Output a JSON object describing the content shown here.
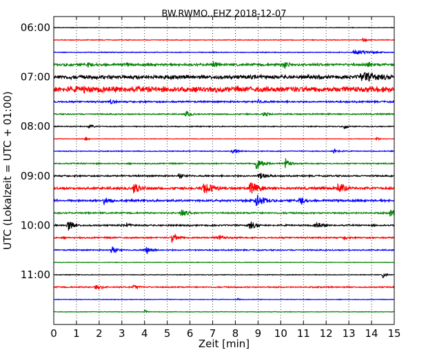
{
  "chart_data": {
    "type": "line",
    "title": "BW.RWMO..EHZ 2018-12-07",
    "xlabel": "Zeit  [min]",
    "ylabel": "UTC (Lokalzeit = UTC + 01:00)",
    "xlim": [
      0,
      15
    ],
    "x_ticks": [
      "0",
      "1",
      "2",
      "3",
      "4",
      "5",
      "6",
      "7",
      "8",
      "9",
      "10",
      "11",
      "12",
      "13",
      "14",
      "15"
    ],
    "y_tick_labels": [
      {
        "row": 0,
        "label": "06:00"
      },
      {
        "row": 4,
        "label": "07:00"
      },
      {
        "row": 8,
        "label": "08:00"
      },
      {
        "row": 12,
        "label": "09:00"
      },
      {
        "row": 16,
        "label": "10:00"
      },
      {
        "row": 20,
        "label": "11:00"
      }
    ],
    "grid": "vertical dotted at each minute",
    "row_colors": [
      "#000000",
      "#ff0000",
      "#0000ff",
      "#008000"
    ],
    "traces": [
      {
        "start": "06:00",
        "noise": 0.6,
        "events": []
      },
      {
        "start": "06:15",
        "noise": 0.8,
        "events": [
          {
            "t": 13.6,
            "amp": 3,
            "dur": 0.3
          }
        ]
      },
      {
        "start": "06:30",
        "noise": 0.8,
        "events": [
          {
            "t": 13.2,
            "amp": 6,
            "dur": 0.7
          },
          {
            "t": 7.0,
            "amp": 2,
            "dur": 0.2
          }
        ]
      },
      {
        "start": "06:45",
        "noise": 2.5,
        "events": [
          {
            "t": 1.5,
            "amp": 7,
            "dur": 0.2
          },
          {
            "t": 3.2,
            "amp": 6,
            "dur": 0.2
          },
          {
            "t": 7.0,
            "amp": 8,
            "dur": 0.3
          },
          {
            "t": 10.1,
            "amp": 9,
            "dur": 0.3
          },
          {
            "t": 13.8,
            "amp": 7,
            "dur": 0.3
          }
        ]
      },
      {
        "start": "07:00",
        "noise": 4.0,
        "events": [
          {
            "t": 13.5,
            "amp": 10,
            "dur": 1.5
          }
        ]
      },
      {
        "start": "07:15",
        "noise": 6.0,
        "events": [
          {
            "t": 1.3,
            "amp": 9,
            "dur": 0.6
          },
          {
            "t": 12.5,
            "amp": 4,
            "dur": 0.3
          }
        ]
      },
      {
        "start": "07:30",
        "noise": 1.8,
        "events": [
          {
            "t": 2.5,
            "amp": 5,
            "dur": 0.3
          },
          {
            "t": 9.0,
            "amp": 5,
            "dur": 0.3
          }
        ]
      },
      {
        "start": "07:45",
        "noise": 1.3,
        "events": [
          {
            "t": 5.8,
            "amp": 6,
            "dur": 0.3
          },
          {
            "t": 9.2,
            "amp": 5,
            "dur": 0.3
          }
        ]
      },
      {
        "start": "08:00",
        "noise": 1.0,
        "events": [
          {
            "t": 1.5,
            "amp": 4,
            "dur": 0.3
          },
          {
            "t": 12.8,
            "amp": 5,
            "dur": 0.2
          }
        ]
      },
      {
        "start": "08:15",
        "noise": 0.6,
        "events": [
          {
            "t": 1.4,
            "amp": 8,
            "dur": 0.08
          },
          {
            "t": 14.2,
            "amp": 3,
            "dur": 0.2
          }
        ]
      },
      {
        "start": "08:30",
        "noise": 0.9,
        "events": [
          {
            "t": 7.8,
            "amp": 5,
            "dur": 0.3
          },
          {
            "t": 12.3,
            "amp": 6,
            "dur": 0.3
          }
        ]
      },
      {
        "start": "08:45",
        "noise": 1.3,
        "events": [
          {
            "t": 8.9,
            "amp": 14,
            "dur": 0.3
          },
          {
            "t": 10.2,
            "amp": 12,
            "dur": 0.2
          }
        ]
      },
      {
        "start": "09:00",
        "noise": 1.6,
        "events": [
          {
            "t": 5.5,
            "amp": 6,
            "dur": 0.3
          },
          {
            "t": 9.0,
            "amp": 8,
            "dur": 0.4
          }
        ]
      },
      {
        "start": "09:15",
        "noise": 2.5,
        "events": [
          {
            "t": 3.5,
            "amp": 12,
            "dur": 0.4
          },
          {
            "t": 6.6,
            "amp": 14,
            "dur": 0.5
          },
          {
            "t": 8.6,
            "amp": 14,
            "dur": 0.5
          },
          {
            "t": 12.5,
            "amp": 12,
            "dur": 0.4
          }
        ]
      },
      {
        "start": "09:30",
        "noise": 2.2,
        "events": [
          {
            "t": 2.2,
            "amp": 8,
            "dur": 0.4
          },
          {
            "t": 8.9,
            "amp": 14,
            "dur": 0.4
          },
          {
            "t": 10.8,
            "amp": 10,
            "dur": 0.3
          }
        ]
      },
      {
        "start": "09:45",
        "noise": 1.6,
        "events": [
          {
            "t": 5.6,
            "amp": 9,
            "dur": 0.3
          },
          {
            "t": 14.8,
            "amp": 8,
            "dur": 0.4
          }
        ]
      },
      {
        "start": "10:00",
        "noise": 1.6,
        "events": [
          {
            "t": 0.6,
            "amp": 12,
            "dur": 0.3
          },
          {
            "t": 3.2,
            "amp": 7,
            "dur": 0.2
          },
          {
            "t": 8.6,
            "amp": 10,
            "dur": 0.3
          },
          {
            "t": 11.5,
            "amp": 10,
            "dur": 0.3
          }
        ]
      },
      {
        "start": "10:15",
        "noise": 1.6,
        "events": [
          {
            "t": 5.2,
            "amp": 10,
            "dur": 0.3
          },
          {
            "t": 7.2,
            "amp": 8,
            "dur": 0.3
          },
          {
            "t": 12.8,
            "amp": 5,
            "dur": 0.2
          }
        ]
      },
      {
        "start": "10:30",
        "noise": 1.3,
        "events": [
          {
            "t": 2.5,
            "amp": 9,
            "dur": 0.3
          },
          {
            "t": 4.0,
            "amp": 10,
            "dur": 0.3
          }
        ]
      },
      {
        "start": "10:45",
        "noise": 0.6,
        "events": []
      },
      {
        "start": "11:00",
        "noise": 0.7,
        "events": [
          {
            "t": 14.5,
            "amp": 6,
            "dur": 0.15
          }
        ]
      },
      {
        "start": "11:15",
        "noise": 1.3,
        "events": [
          {
            "t": 1.8,
            "amp": 8,
            "dur": 0.3
          },
          {
            "t": 3.5,
            "amp": 5,
            "dur": 0.3
          }
        ]
      },
      {
        "start": "11:30",
        "noise": 0.6,
        "events": [
          {
            "t": 8.1,
            "amp": 3,
            "dur": 0.1
          }
        ]
      },
      {
        "start": "11:45",
        "noise": 0.6,
        "events": [
          {
            "t": 4.0,
            "amp": 6,
            "dur": 0.08
          }
        ]
      }
    ]
  }
}
